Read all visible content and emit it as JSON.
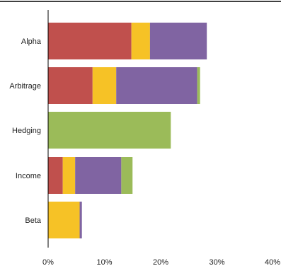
{
  "chart_data": {
    "type": "bar",
    "orientation": "horizontal",
    "stacked": true,
    "categories": [
      "Alpha",
      "Arbitrage",
      "Hedging",
      "Income",
      "Beta"
    ],
    "series": [
      {
        "color": "#c0504d",
        "values": [
          14.8,
          7.9,
          0.0,
          2.6,
          0.0
        ]
      },
      {
        "color": "#f6c226",
        "values": [
          3.3,
          4.2,
          0.0,
          2.2,
          5.6
        ]
      },
      {
        "color": "#8064a2",
        "values": [
          10.1,
          14.4,
          0.0,
          8.2,
          0.4
        ]
      },
      {
        "color": "#9bbb59",
        "values": [
          0.0,
          0.5,
          21.8,
          2.0,
          0.0
        ]
      }
    ],
    "xlim": [
      0,
      40
    ],
    "xticks": [
      "0%",
      "10%",
      "20%",
      "30%",
      "40%"
    ],
    "tick_values": [
      0,
      10,
      20,
      30,
      40
    ],
    "grid": false,
    "legend": "none"
  }
}
